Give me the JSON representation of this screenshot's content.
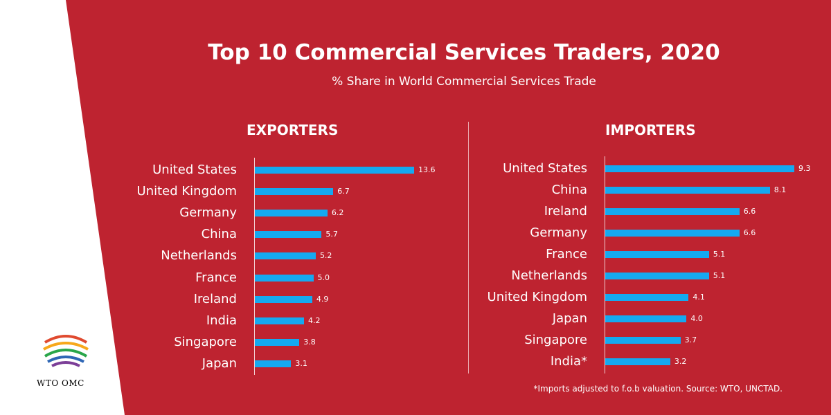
{
  "logo": {
    "text": "WTO OMC"
  },
  "chart_data": {
    "type": "bar",
    "title": "Top 10 Commercial Services Traders, 2020",
    "subtitle": "% Share in World Commercial Services Trade",
    "note": "*Imports adjusted to f.o.b valuation. Source: WTO, UNCTAD.",
    "colors": {
      "bar": "#15a9f0",
      "background": "#be2330"
    },
    "panels": [
      {
        "title": "EXPORTERS",
        "categories": [
          "United States",
          "United Kingdom",
          "Germany",
          "China",
          "Netherlands",
          "France",
          "Ireland",
          "India",
          "Singapore",
          "Japan"
        ],
        "values": [
          13.6,
          6.7,
          6.2,
          5.7,
          5.2,
          5.0,
          4.9,
          4.2,
          3.8,
          3.1
        ],
        "value_labels": [
          "13.6",
          "6.7",
          "6.2",
          "5.7",
          "5.2",
          "5.0",
          "4.9",
          "4.2",
          "3.8",
          "3.1"
        ]
      },
      {
        "title": "IMPORTERS",
        "categories": [
          "United States",
          "China",
          "Ireland",
          "Germany",
          "France",
          "Netherlands",
          "United Kingdom",
          "Japan",
          "Singapore",
          "India*"
        ],
        "values": [
          9.3,
          8.1,
          6.6,
          6.6,
          5.1,
          5.1,
          4.1,
          4.0,
          3.7,
          3.2
        ],
        "value_labels": [
          "9.3",
          "8.1",
          "6.6",
          "6.6",
          "5.1",
          "5.1",
          "4.1",
          "4.0",
          "3.7",
          "3.2"
        ]
      }
    ]
  }
}
